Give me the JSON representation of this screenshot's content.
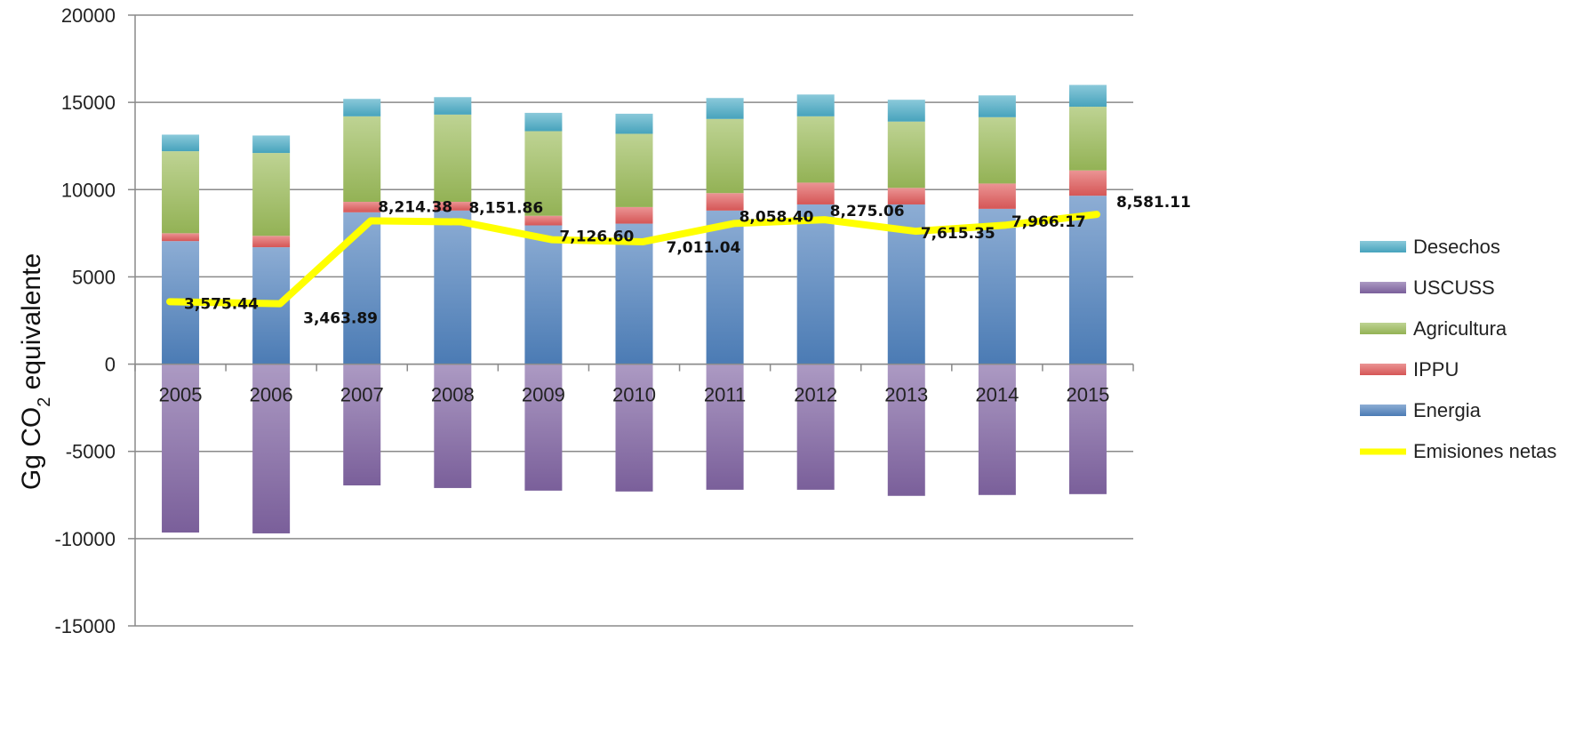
{
  "chart_data": {
    "type": "bar",
    "stacked": true,
    "categories": [
      "2005",
      "2006",
      "2007",
      "2008",
      "2009",
      "2010",
      "2011",
      "2012",
      "2013",
      "2014",
      "2015"
    ],
    "ylabel": "Gg CO",
    "ylabel_subscript": "2",
    "ylabel_suffix": " equivalente",
    "ylim": [
      -15000,
      20000
    ],
    "yticks": [
      "20000",
      "15000",
      "10000",
      "5000",
      "0",
      "-5000",
      "-10000",
      "-15000"
    ],
    "grid": true,
    "legend_position": "right",
    "series": [
      {
        "name": "Energia",
        "color": "#4f81bd",
        "values": [
          7050,
          6700,
          8700,
          8800,
          7950,
          8050,
          8800,
          9150,
          9150,
          8900,
          9650
        ]
      },
      {
        "name": "IPPU",
        "color": "#e05a5a",
        "values": [
          450,
          650,
          600,
          500,
          550,
          950,
          1000,
          1250,
          950,
          1450,
          1450
        ]
      },
      {
        "name": "Agricultura",
        "color": "#9bbb59",
        "values": [
          4700,
          4750,
          4900,
          5000,
          4850,
          4200,
          4250,
          3800,
          3800,
          3800,
          3650
        ]
      },
      {
        "name": "Desechos",
        "color": "#4bacc6",
        "values": [
          950,
          1000,
          1000,
          1000,
          1050,
          1150,
          1200,
          1250,
          1250,
          1250,
          1250
        ]
      },
      {
        "name": "USCUSS",
        "color": "#8064a2",
        "values": [
          -9650,
          -9700,
          -6950,
          -7100,
          -7250,
          -7300,
          -7200,
          -7200,
          -7550,
          -7500,
          -7450
        ]
      }
    ],
    "line": {
      "name": "Emisiones netas",
      "color": "#ffff00",
      "values": [
        3575.44,
        3463.89,
        8214.38,
        8151.86,
        7126.6,
        7011.04,
        8058.4,
        8275.06,
        7615.35,
        7966.17,
        8581.11
      ],
      "labels": [
        "3,575.44",
        "3,463.89",
        "8,214.38",
        "8,151.86",
        "7,126.60",
        "7,011.04",
        "8,058.40",
        "8,275.06",
        "7,615.35",
        "7,966.17",
        "8,581.11"
      ]
    },
    "legend": [
      "Desechos",
      "USCUSS",
      "Agricultura",
      "IPPU",
      "Energia",
      "Emisiones netas"
    ]
  }
}
